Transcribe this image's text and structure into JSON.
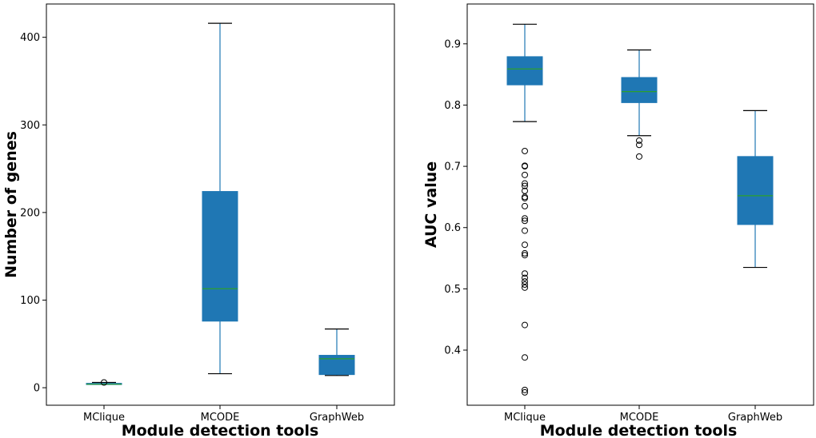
{
  "chart_data": [
    {
      "type": "box",
      "xlabel": "Module detection tools",
      "ylabel": "Number of genes",
      "categories": [
        "MClique",
        "MCODE",
        "GraphWeb"
      ],
      "ylim": [
        -20,
        438
      ],
      "yticks": [
        0,
        100,
        200,
        300,
        400
      ],
      "box_color": "#1f77b4",
      "median_color": "#2ca02c",
      "boxes": [
        {
          "name": "MClique",
          "whisker_low": 4,
          "q1": 4,
          "median": 4,
          "q3": 5,
          "whisker_high": 6,
          "outliers": [
            6
          ]
        },
        {
          "name": "MCODE",
          "whisker_low": 16,
          "q1": 76,
          "median": 113,
          "q3": 224,
          "whisker_high": 416,
          "outliers": []
        },
        {
          "name": "GraphWeb",
          "whisker_low": 14,
          "q1": 15,
          "median": 33,
          "q3": 37,
          "whisker_high": 67,
          "outliers": []
        }
      ]
    },
    {
      "type": "box",
      "xlabel": "Module detection tools",
      "ylabel": "AUC value",
      "categories": [
        "MClique",
        "MCODE",
        "GraphWeb"
      ],
      "ylim": [
        0.31,
        0.965
      ],
      "yticks": [
        0.4,
        0.5,
        0.6,
        0.7,
        0.8,
        0.9
      ],
      "box_color": "#1f77b4",
      "median_color": "#2ca02c",
      "boxes": [
        {
          "name": "MClique",
          "whisker_low": 0.773,
          "q1": 0.833,
          "median": 0.859,
          "q3": 0.879,
          "whisker_high": 0.932,
          "outliers": [
            0.725,
            0.701,
            0.7,
            0.686,
            0.672,
            0.668,
            0.66,
            0.65,
            0.648,
            0.635,
            0.615,
            0.611,
            0.595,
            0.572,
            0.558,
            0.555,
            0.525,
            0.518,
            0.512,
            0.507,
            0.502,
            0.441,
            0.388,
            0.335,
            0.331
          ]
        },
        {
          "name": "MCODE",
          "whisker_low": 0.75,
          "q1": 0.804,
          "median": 0.822,
          "q3": 0.845,
          "whisker_high": 0.89,
          "outliers": [
            0.742,
            0.735,
            0.716
          ]
        },
        {
          "name": "GraphWeb",
          "whisker_low": 0.535,
          "q1": 0.605,
          "median": 0.652,
          "q3": 0.716,
          "whisker_high": 0.791,
          "outliers": []
        }
      ]
    }
  ]
}
